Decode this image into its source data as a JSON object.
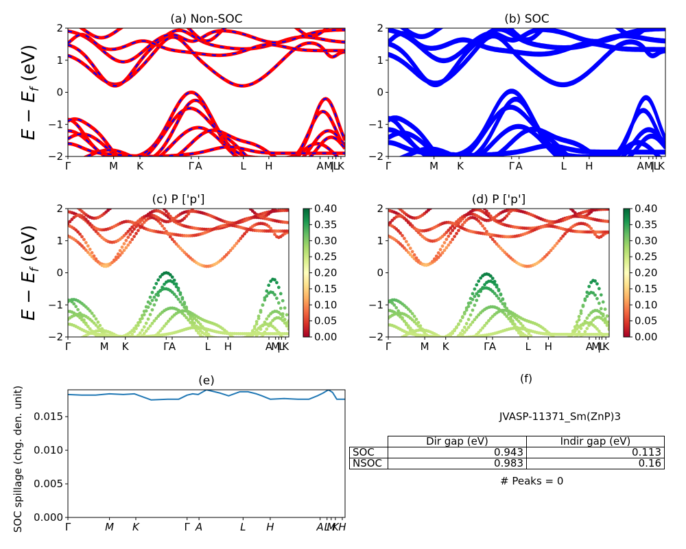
{
  "chart_data": [
    {
      "id": "a",
      "type": "line",
      "title": "(a) Non-SOC",
      "ylabel": "E − E_f (eV)",
      "ylim": [
        -2,
        2
      ],
      "yticks": [
        -2,
        -1,
        0,
        1,
        2
      ],
      "kpath": [
        {
          "label": "Γ",
          "pos": 0.0
        },
        {
          "label": "M",
          "pos": 0.165
        },
        {
          "label": "K",
          "pos": 0.26
        },
        {
          "label": "Γ",
          "pos": 0.445
        },
        {
          "label": "A",
          "pos": 0.472
        },
        {
          "label": "L",
          "pos": 0.633
        },
        {
          "label": "H",
          "pos": 0.725
        },
        {
          "label": "A",
          "pos": 0.91
        },
        {
          "label": "M",
          "pos": 0.94
        },
        {
          "label": "|",
          "pos": 0.955
        },
        {
          "label": "L",
          "pos": 0.967
        },
        {
          "label": "K",
          "pos": 0.985
        }
      ],
      "band_colors": [
        "#ff0000",
        "#0000ff"
      ],
      "style": "red bands with blue dashed overlay"
    },
    {
      "id": "b",
      "type": "line",
      "title": "(b) SOC",
      "ylim": [
        -2,
        2
      ],
      "yticks": [
        -2,
        -1,
        0,
        1,
        2
      ],
      "kpath": [
        {
          "label": "Γ",
          "pos": 0.0
        },
        {
          "label": "M",
          "pos": 0.165
        },
        {
          "label": "K",
          "pos": 0.26
        },
        {
          "label": "Γ",
          "pos": 0.445
        },
        {
          "label": "A",
          "pos": 0.472
        },
        {
          "label": "L",
          "pos": 0.633
        },
        {
          "label": "H",
          "pos": 0.725
        },
        {
          "label": "A",
          "pos": 0.91
        },
        {
          "label": "M",
          "pos": 0.94
        },
        {
          "label": "|",
          "pos": 0.955
        },
        {
          "label": "L",
          "pos": 0.967
        },
        {
          "label": "K",
          "pos": 0.985
        }
      ],
      "band_colors": [
        "#0000ff"
      ]
    },
    {
      "id": "c",
      "type": "scatter",
      "title": "(c)  P ['p']",
      "ylabel": "E − E_f (eV)",
      "ylim": [
        -2,
        2
      ],
      "yticks": [
        -2,
        -1,
        0,
        1,
        2
      ],
      "kpath": [
        {
          "label": "Γ",
          "pos": 0.0
        },
        {
          "label": "M",
          "pos": 0.165
        },
        {
          "label": "K",
          "pos": 0.26
        },
        {
          "label": "Γ",
          "pos": 0.445
        },
        {
          "label": "A",
          "pos": 0.472
        },
        {
          "label": "L",
          "pos": 0.633
        },
        {
          "label": "H",
          "pos": 0.725
        },
        {
          "label": "A",
          "pos": 0.91
        },
        {
          "label": "M",
          "pos": 0.94
        },
        {
          "label": "|",
          "pos": 0.955
        },
        {
          "label": "L",
          "pos": 0.967
        },
        {
          "label": "K",
          "pos": 0.985
        }
      ],
      "colorbar": {
        "colormap": "RdYlGn",
        "range": [
          0.0,
          0.4
        ],
        "ticks": [
          "0.00",
          "0.05",
          "0.10",
          "0.15",
          "0.20",
          "0.25",
          "0.30",
          "0.35",
          "0.40"
        ]
      }
    },
    {
      "id": "d",
      "type": "scatter",
      "title": "(d) P ['p']",
      "ylim": [
        -2,
        2
      ],
      "yticks": [
        -2,
        -1,
        0,
        1,
        2
      ],
      "kpath": [
        {
          "label": "Γ",
          "pos": 0.0
        },
        {
          "label": "M",
          "pos": 0.165
        },
        {
          "label": "K",
          "pos": 0.26
        },
        {
          "label": "Γ",
          "pos": 0.445
        },
        {
          "label": "A",
          "pos": 0.472
        },
        {
          "label": "L",
          "pos": 0.633
        },
        {
          "label": "H",
          "pos": 0.725
        },
        {
          "label": "A",
          "pos": 0.91
        },
        {
          "label": "M",
          "pos": 0.94
        },
        {
          "label": "|",
          "pos": 0.955
        },
        {
          "label": "L",
          "pos": 0.967
        },
        {
          "label": "K",
          "pos": 0.985
        }
      ],
      "colorbar": {
        "colormap": "RdYlGn",
        "range": [
          0.0,
          0.4
        ],
        "ticks": [
          "0.00",
          "0.05",
          "0.10",
          "0.15",
          "0.20",
          "0.25",
          "0.30",
          "0.35",
          "0.40"
        ]
      }
    },
    {
      "id": "e",
      "type": "line",
      "title": "(e)",
      "ylabel": "SOC spillage (chg. den. unit)",
      "ylim": [
        0,
        0.019
      ],
      "yticks": [
        "0.000",
        "0.005",
        "0.010",
        "0.015"
      ],
      "ytick_values": [
        0.0,
        0.005,
        0.01,
        0.015
      ],
      "kpath": [
        {
          "label": "Γ",
          "pos": 0.0
        },
        {
          "label": "M",
          "pos": 0.15
        },
        {
          "label": "K",
          "pos": 0.245
        },
        {
          "label": "Γ",
          "pos": 0.43
        },
        {
          "label": "A",
          "pos": 0.473
        },
        {
          "label": "L",
          "pos": 0.632
        },
        {
          "label": "H",
          "pos": 0.73
        },
        {
          "label": "A",
          "pos": 0.91
        },
        {
          "label": "L",
          "pos": 0.935
        },
        {
          "label": "M",
          "pos": 0.95
        },
        {
          "label": "K",
          "pos": 0.965
        },
        {
          "label": "H",
          "pos": 0.99
        }
      ],
      "series": [
        {
          "color": "#1f77b4",
          "x": [
            0.0,
            0.05,
            0.1,
            0.15,
            0.2,
            0.24,
            0.3,
            0.36,
            0.4,
            0.43,
            0.45,
            0.47,
            0.5,
            0.55,
            0.58,
            0.62,
            0.65,
            0.68,
            0.7,
            0.73,
            0.78,
            0.83,
            0.87,
            0.9,
            0.92,
            0.94,
            0.955,
            0.97,
            1.0
          ],
          "y": [
            0.0183,
            0.0182,
            0.0182,
            0.0184,
            0.0183,
            0.0184,
            0.0175,
            0.0176,
            0.0176,
            0.0182,
            0.0184,
            0.0183,
            0.019,
            0.0185,
            0.0181,
            0.0187,
            0.0187,
            0.0184,
            0.0181,
            0.0176,
            0.0177,
            0.0176,
            0.0176,
            0.0181,
            0.0185,
            0.019,
            0.0186,
            0.0176,
            0.0176
          ]
        }
      ]
    }
  ],
  "panel_f": {
    "title": "(f)",
    "subtitle": "JVASP-11371_Sm(ZnP)3",
    "table": {
      "headers": [
        "Dir gap (eV)",
        "Indir gap (eV)"
      ],
      "rows": [
        {
          "label": "SOC",
          "dir": "0.943",
          "indir": "0.113"
        },
        {
          "label": "NSOC",
          "dir": "0.983",
          "indir": "0.16"
        }
      ]
    },
    "peaks_text": "# Peaks = 0"
  }
}
